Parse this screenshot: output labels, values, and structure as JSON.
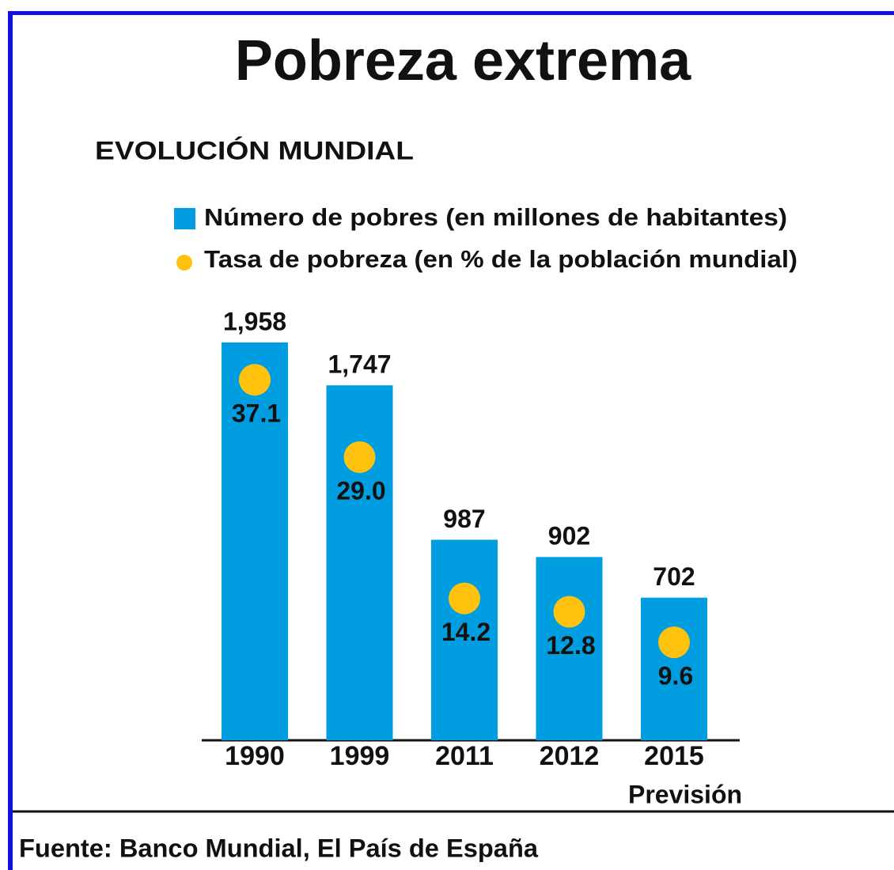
{
  "chart_data": {
    "type": "bar",
    "title": "Pobreza extrema",
    "subtitle": "EVOLUCIÓN MUNDIAL",
    "categories": [
      "1990",
      "1999",
      "2011",
      "2012",
      "2015"
    ],
    "category_note": "Previsión",
    "series": [
      {
        "name": "Número de pobres (en millones de habitantes)",
        "color": "#009ee0",
        "values": [
          1958,
          1747,
          987,
          902,
          702
        ],
        "value_labels": [
          "1,958",
          "1,747",
          "987",
          "902",
          "702"
        ]
      },
      {
        "name": "Tasa de pobreza (en % de la población mundial)",
        "color": "#ffc20e",
        "axis": "y2",
        "values": [
          37.1,
          29.0,
          14.2,
          12.8,
          9.6
        ],
        "value_labels": [
          "37.1",
          "29.0",
          "14.2",
          "12.8",
          "9.6"
        ]
      }
    ],
    "source": "Fuente: Banco Mundial, El País de España"
  }
}
